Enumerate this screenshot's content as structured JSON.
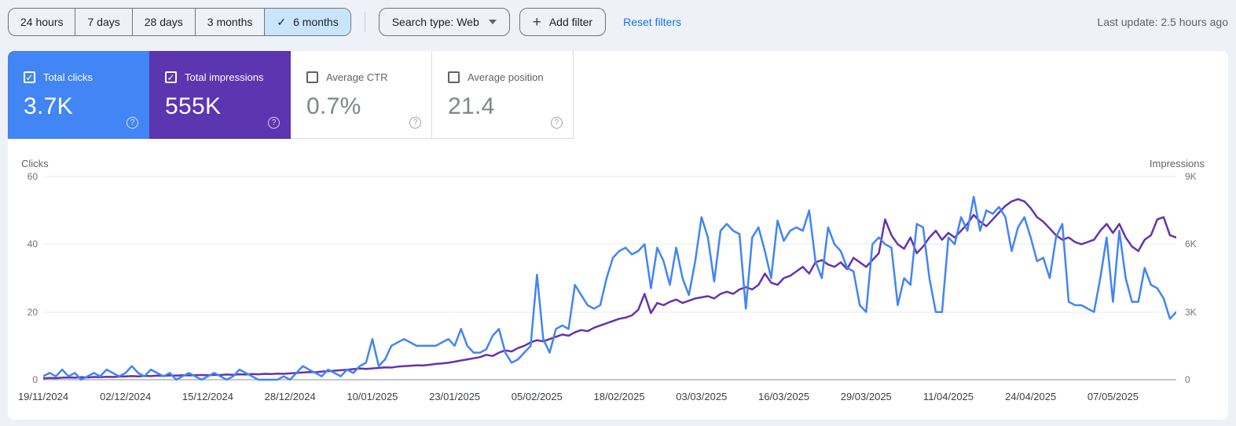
{
  "toolbar": {
    "ranges": [
      {
        "label": "24 hours",
        "selected": false
      },
      {
        "label": "7 days",
        "selected": false
      },
      {
        "label": "28 days",
        "selected": false
      },
      {
        "label": "3 months",
        "selected": false
      },
      {
        "label": "6 months",
        "selected": true
      }
    ],
    "selected_check": "✓",
    "search_type": "Search type: Web",
    "add_filter": "Add filter",
    "reset_filters": "Reset filters",
    "last_update": "Last update: 2.5 hours ago"
  },
  "cards": [
    {
      "label": "Total clicks",
      "value": "3.7K",
      "checked": true,
      "color": "#4285f4"
    },
    {
      "label": "Total impressions",
      "value": "555K",
      "checked": true,
      "color": "#5c35b1"
    },
    {
      "label": "Average CTR",
      "value": "0.7%",
      "checked": false,
      "color": "#ffffff"
    },
    {
      "label": "Average position",
      "value": "21.4",
      "checked": false,
      "color": "#ffffff"
    }
  ],
  "check_glyph": "✓",
  "help_glyph": "?",
  "chart_data": {
    "type": "line",
    "left_axis": {
      "label": "Clicks",
      "ticks": [
        "60",
        "40",
        "20",
        "0"
      ],
      "max": 60
    },
    "right_axis": {
      "label": "Impressions",
      "ticks": [
        "9K",
        "6K",
        "3K",
        "0"
      ],
      "max": 9000
    },
    "grid": true,
    "legend_position": "none",
    "x_tick_days": [
      0,
      13,
      26,
      39,
      52,
      65,
      78,
      91,
      104,
      117,
      130,
      143,
      156,
      169
    ],
    "x_tick_labels": [
      "19/11/2024",
      "02/12/2024",
      "15/12/2024",
      "28/12/2024",
      "10/01/2025",
      "23/01/2025",
      "05/02/2025",
      "18/02/2025",
      "03/03/2025",
      "16/03/2025",
      "29/03/2025",
      "11/04/2025",
      "24/04/2025",
      "07/05/2025"
    ],
    "series": [
      {
        "name": "Total clicks",
        "axis": "left",
        "color": "#4285f4",
        "values": [
          1,
          2,
          1,
          3,
          1,
          2,
          0,
          1,
          2,
          1,
          3,
          2,
          1,
          2,
          4,
          2,
          1,
          3,
          2,
          1,
          2,
          0,
          1,
          2,
          1,
          0,
          1,
          2,
          1,
          0,
          1,
          3,
          2,
          1,
          0,
          0,
          0,
          0,
          1,
          0,
          2,
          4,
          3,
          2,
          1,
          3,
          2,
          1,
          3,
          2,
          4,
          5,
          12,
          4,
          6,
          10,
          11,
          12,
          11,
          10,
          10,
          10,
          10,
          11,
          12,
          10,
          15,
          10,
          8,
          8,
          9,
          13,
          15,
          8,
          5,
          6,
          8,
          10,
          31,
          12,
          8,
          15,
          16,
          15,
          28,
          25,
          22,
          21,
          22,
          30,
          36,
          38,
          39,
          37,
          38,
          40,
          27,
          39,
          35,
          28,
          39,
          30,
          25,
          35,
          48,
          42,
          29,
          44,
          46,
          44,
          43,
          21,
          42,
          45,
          38,
          30,
          47,
          41,
          44,
          45,
          44,
          50,
          35,
          30,
          45,
          40,
          38,
          33,
          32,
          22,
          20,
          40,
          42,
          40,
          39,
          22,
          30,
          28,
          46,
          45,
          30,
          20,
          20,
          42,
          40,
          48,
          44,
          54,
          44,
          50,
          49,
          51,
          48,
          38,
          45,
          48,
          42,
          35,
          36,
          30,
          42,
          46,
          23,
          22,
          22,
          21,
          20,
          30,
          42,
          23,
          44,
          30,
          23,
          23,
          33,
          28,
          27,
          24,
          18,
          20
        ]
      },
      {
        "name": "Total impressions",
        "axis": "right",
        "color": "#6632ad",
        "values": [
          60,
          80,
          70,
          90,
          100,
          90,
          110,
          100,
          120,
          110,
          130,
          120,
          140,
          150,
          160,
          150,
          170,
          160,
          180,
          170,
          190,
          180,
          200,
          190,
          200,
          210,
          200,
          220,
          210,
          230,
          220,
          240,
          230,
          250,
          240,
          260,
          250,
          270,
          260,
          280,
          300,
          320,
          340,
          330,
          360,
          380,
          400,
          420,
          440,
          470,
          500,
          480,
          500,
          520,
          550,
          540,
          580,
          600,
          620,
          640,
          630,
          660,
          700,
          720,
          750,
          800,
          850,
          900,
          950,
          1000,
          1100,
          1050,
          1200,
          1300,
          1250,
          1400,
          1500,
          1650,
          1750,
          1700,
          1800,
          1900,
          2000,
          1950,
          2100,
          2200,
          2150,
          2300,
          2400,
          2500,
          2600,
          2700,
          2750,
          2850,
          3100,
          3800,
          2950,
          3400,
          3300,
          3450,
          3550,
          3400,
          3500,
          3600,
          3650,
          3700,
          3600,
          3800,
          3900,
          3800,
          4000,
          4100,
          4000,
          4200,
          4700,
          4300,
          4200,
          4500,
          4600,
          4800,
          5000,
          4700,
          5200,
          5300,
          5100,
          5000,
          5200,
          4900,
          5400,
          5200,
          5000,
          5300,
          5600,
          7100,
          6400,
          6000,
          5800,
          6300,
          5600,
          5900,
          6300,
          6600,
          6200,
          6500,
          6300,
          6600,
          6900,
          7300,
          7000,
          6800,
          7100,
          7400,
          7700,
          7900,
          8000,
          7900,
          7600,
          7200,
          7000,
          6700,
          6400,
          6200,
          6300,
          6100,
          6000,
          6100,
          6200,
          6600,
          6900,
          6500,
          6900,
          6300,
          5900,
          5700,
          6200,
          6400,
          7100,
          7200,
          6400,
          6300
        ]
      }
    ]
  }
}
